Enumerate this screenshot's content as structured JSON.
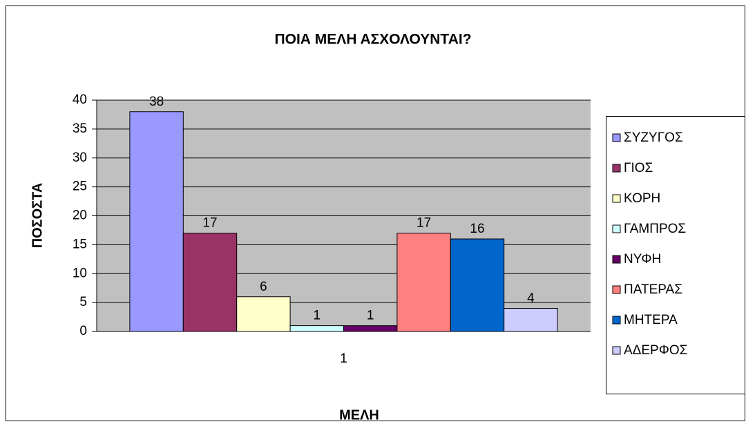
{
  "chart_data": {
    "type": "bar",
    "title": "ΠΟΙΑ ΜΕΛΗ ΑΣΧΟΛΟΥΝΤΑΙ?",
    "x_label": "ΜΕΛΗ",
    "y_label": "ΠΟΣΟΣΤΑ",
    "categories": [
      "1"
    ],
    "series": [
      {
        "name": "ΣΥΖΥΓΟΣ",
        "color": "#9999ff",
        "values": [
          38
        ]
      },
      {
        "name": "ΓΙΟΣ",
        "color": "#993366",
        "values": [
          17
        ]
      },
      {
        "name": "ΚΟΡΗ",
        "color": "#ffffcc",
        "values": [
          6
        ]
      },
      {
        "name": "ΓΑΜΠΡΟΣ",
        "color": "#ccffff",
        "values": [
          1
        ]
      },
      {
        "name": "ΝΥΦΗ",
        "color": "#660066",
        "values": [
          1
        ]
      },
      {
        "name": "ΠΑΤΕΡΑΣ",
        "color": "#ff8080",
        "values": [
          17
        ]
      },
      {
        "name": "ΜΗΤΕΡΑ",
        "color": "#0066cc",
        "values": [
          16
        ]
      },
      {
        "name": "ΑΔΕΡΦΟΣ",
        "color": "#ccccff",
        "values": [
          4
        ]
      }
    ],
    "ylim": [
      0,
      40
    ],
    "yticks": [
      0,
      5,
      10,
      15,
      20,
      25,
      30,
      35,
      40
    ],
    "grid": true,
    "legend": "right"
  }
}
